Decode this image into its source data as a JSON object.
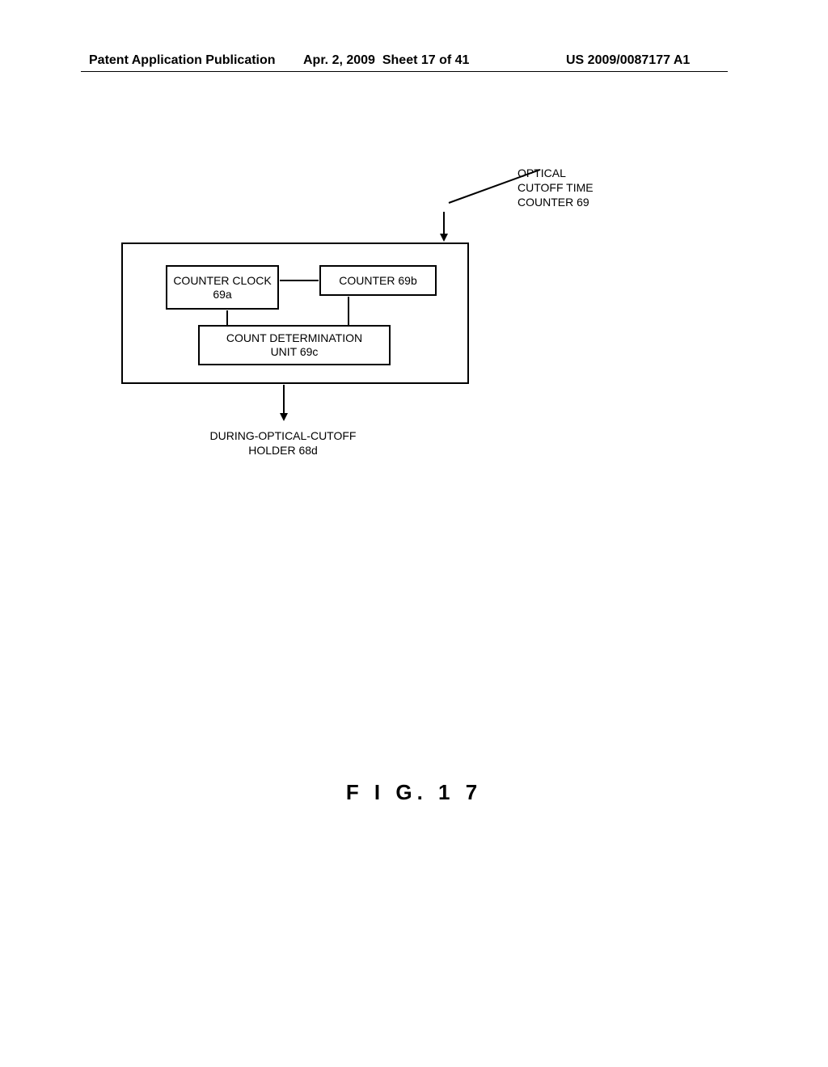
{
  "header": {
    "publication_type": "Patent Application Publication",
    "date": "Apr. 2, 2009",
    "sheet_info": "Sheet 17 of 41",
    "publication_number": "US 2009/0087177 A1"
  },
  "diagram": {
    "type": "flowchart",
    "main_block_label": "OPTICAL CUTOFF TIME\nCOUNTER 69",
    "blocks": {
      "clock": {
        "line1": "COUNTER CLOCK",
        "line2": "69a"
      },
      "counter": "COUNTER 69b",
      "determination": {
        "line1": "COUNT DETERMINATION",
        "line2": "UNIT 69c"
      }
    },
    "output_label": {
      "line1": "DURING-OPTICAL-CUTOFF",
      "line2": "HOLDER 68d"
    },
    "styling": {
      "box_border_color": "#000000",
      "box_border_width": 2,
      "background_color": "#ffffff",
      "text_color": "#000000",
      "font_size": 14
    }
  },
  "figure_label": "F I G.  1 7"
}
